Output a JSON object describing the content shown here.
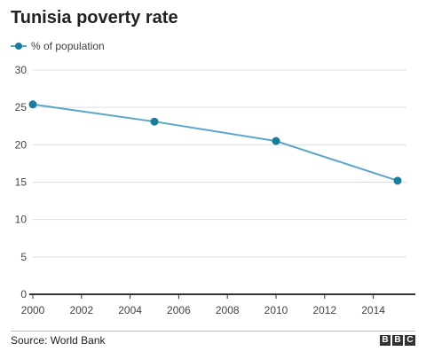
{
  "title": "Tunisia poverty rate",
  "source": "Source: World Bank",
  "logo": [
    "B",
    "B",
    "C"
  ],
  "colors": {
    "line": "#5aa6c8",
    "marker": "#1a7d9a",
    "axis": "#333333",
    "grid": "#dddddd"
  },
  "chart_data": {
    "type": "line",
    "title": "Tunisia poverty rate",
    "xlabel": "",
    "ylabel": "",
    "xlim": [
      2000,
      2015
    ],
    "ylim": [
      0,
      30
    ],
    "xticks": [
      2000,
      2002,
      2004,
      2006,
      2008,
      2010,
      2012,
      2014
    ],
    "yticks": [
      0,
      5,
      10,
      15,
      20,
      25,
      30
    ],
    "grid": "horizontal",
    "legend": "top-left",
    "series": [
      {
        "name": "% of population",
        "x": [
          2000,
          2005,
          2010,
          2015
        ],
        "values": [
          25.4,
          23.1,
          20.5,
          15.2
        ]
      }
    ]
  }
}
